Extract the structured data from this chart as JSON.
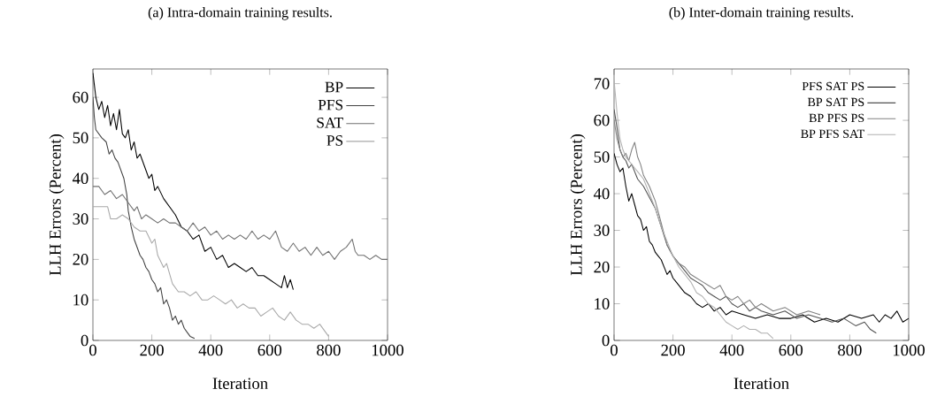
{
  "chart_data": [
    {
      "type": "line",
      "title": "(a) Intra-domain training results.",
      "xlabel": "Iteration",
      "ylabel": "LLH Errors (Percent)",
      "xlim": [
        0,
        1000
      ],
      "ylim": [
        0,
        67
      ],
      "xticks": [
        0,
        200,
        400,
        600,
        800,
        1000
      ],
      "yticks": [
        0,
        10,
        20,
        30,
        40,
        50,
        60
      ],
      "legend": "top right",
      "series": [
        {
          "name": "BP",
          "color": "#000000",
          "x": [
            0,
            10,
            20,
            30,
            40,
            50,
            60,
            70,
            80,
            90,
            100,
            110,
            120,
            130,
            140,
            150,
            160,
            180,
            190,
            200,
            210,
            220,
            240,
            260,
            280,
            300,
            320,
            340,
            360,
            380,
            400,
            420,
            440,
            460,
            480,
            500,
            520,
            540,
            560,
            580,
            600,
            620,
            640,
            650,
            660,
            670,
            680
          ],
          "values": [
            66,
            60,
            57,
            59,
            55,
            58,
            53,
            56,
            52,
            57,
            51,
            50,
            52,
            47,
            49,
            45,
            46,
            42,
            40,
            41,
            37,
            38,
            35,
            33,
            31,
            28,
            27,
            25,
            26,
            22,
            23,
            20,
            21,
            18,
            19,
            18,
            17,
            18,
            16,
            16,
            15,
            14,
            13,
            16,
            13,
            15,
            12.5
          ]
        },
        {
          "name": "PFS",
          "color": "#404040",
          "x": [
            0,
            5,
            10,
            20,
            30,
            45,
            55,
            65,
            75,
            85,
            95,
            105,
            115,
            120,
            130,
            140,
            150,
            160,
            170,
            180,
            190,
            200,
            210,
            220,
            230,
            240,
            250,
            260,
            270,
            280,
            290,
            300,
            310,
            320,
            330,
            345
          ],
          "values": [
            60,
            55,
            52,
            51,
            50,
            49,
            46,
            47,
            45,
            44,
            42,
            40,
            36,
            32,
            28,
            25,
            23,
            21,
            20,
            18,
            17,
            15,
            14,
            12,
            13,
            9,
            10,
            8,
            5,
            6,
            4,
            5,
            3,
            2,
            1,
            0.5
          ]
        },
        {
          "name": "SAT",
          "color": "#707070",
          "x": [
            0,
            20,
            40,
            60,
            80,
            100,
            120,
            140,
            150,
            165,
            180,
            200,
            220,
            240,
            260,
            280,
            300,
            320,
            340,
            360,
            380,
            400,
            420,
            440,
            460,
            480,
            500,
            520,
            540,
            560,
            580,
            600,
            620,
            640,
            660,
            680,
            700,
            720,
            740,
            760,
            780,
            800,
            820,
            840,
            860,
            880,
            890,
            900,
            920,
            940,
            960,
            980,
            1000
          ],
          "values": [
            38,
            38,
            36,
            37,
            35,
            36,
            34,
            32,
            33,
            30,
            31,
            30,
            29,
            30,
            29,
            29,
            28,
            27,
            29,
            27,
            28,
            26,
            27,
            25,
            26,
            25,
            26,
            25,
            27,
            25,
            26,
            25,
            27,
            23,
            22,
            24,
            22,
            23,
            21,
            23,
            21,
            22,
            20,
            22,
            23,
            25,
            22,
            21,
            21,
            20,
            21,
            20,
            20
          ]
        },
        {
          "name": "PS",
          "color": "#a8a8a8",
          "x": [
            0,
            50,
            60,
            80,
            100,
            120,
            140,
            160,
            180,
            200,
            210,
            220,
            240,
            250,
            270,
            290,
            310,
            330,
            350,
            370,
            390,
            410,
            430,
            450,
            470,
            490,
            510,
            530,
            550,
            570,
            590,
            610,
            630,
            650,
            670,
            690,
            710,
            730,
            750,
            770,
            790,
            800
          ],
          "values": [
            33,
            33,
            30,
            30,
            31,
            30,
            28,
            27,
            27,
            24,
            25,
            21,
            18,
            19,
            14,
            12,
            12,
            11,
            12,
            10,
            10,
            11,
            10,
            9,
            10,
            8,
            9,
            8,
            8,
            6,
            7,
            8,
            6,
            5,
            7,
            5,
            4,
            4,
            3,
            4,
            2,
            1
          ]
        }
      ]
    },
    {
      "type": "line",
      "title": "(b) Inter-domain training results.",
      "xlabel": "Iteration",
      "ylabel": "LLH Errors (Percent)",
      "xlim": [
        0,
        1000
      ],
      "ylim": [
        0,
        74
      ],
      "xticks": [
        0,
        200,
        400,
        600,
        800,
        1000
      ],
      "yticks": [
        0,
        10,
        20,
        30,
        40,
        50,
        60,
        70
      ],
      "legend": "top right",
      "series": [
        {
          "name": "PFS SAT PS",
          "color": "#000000",
          "x": [
            0,
            10,
            20,
            30,
            40,
            50,
            60,
            70,
            80,
            90,
            100,
            110,
            120,
            130,
            140,
            150,
            160,
            170,
            180,
            190,
            200,
            220,
            240,
            260,
            280,
            300,
            320,
            340,
            360,
            380,
            400,
            440,
            480,
            520,
            560,
            600,
            640,
            680,
            720,
            760,
            800,
            840,
            880,
            900,
            920,
            940,
            960,
            980,
            1000
          ],
          "values": [
            51,
            48,
            46,
            47,
            42,
            38,
            40,
            37,
            34,
            33,
            30,
            31,
            27,
            26,
            24,
            23,
            22,
            20,
            18,
            19,
            17,
            15,
            13,
            12,
            10,
            9,
            10,
            8,
            9,
            7,
            8,
            7,
            6,
            7,
            6,
            6,
            7,
            5,
            6,
            5,
            7,
            6,
            7,
            5,
            7,
            6,
            8,
            5,
            6
          ]
        },
        {
          "name": "BP SAT PS",
          "color": "#505050",
          "x": [
            0,
            10,
            20,
            30,
            40,
            50,
            60,
            70,
            80,
            90,
            100,
            120,
            140,
            160,
            180,
            200,
            220,
            240,
            260,
            280,
            300,
            320,
            340,
            360,
            380,
            400,
            420,
            440,
            460,
            480,
            500,
            540,
            580,
            620,
            660,
            700,
            740,
            780,
            820,
            850,
            870,
            890
          ],
          "values": [
            63,
            58,
            52,
            50,
            49,
            47,
            48,
            46,
            44,
            43,
            42,
            39,
            36,
            31,
            26,
            23,
            21,
            19,
            17,
            16,
            15,
            13,
            12,
            11,
            12,
            10,
            9,
            10,
            8,
            9,
            8,
            7,
            8,
            6,
            7,
            6,
            5,
            6,
            4,
            5,
            3,
            2
          ]
        },
        {
          "name": "BP PFS PS",
          "color": "#808080",
          "x": [
            0,
            10,
            20,
            30,
            40,
            50,
            60,
            70,
            80,
            90,
            100,
            120,
            140,
            160,
            180,
            200,
            220,
            240,
            260,
            280,
            300,
            320,
            340,
            360,
            380,
            400,
            420,
            440,
            460,
            480,
            500,
            540,
            580,
            620,
            660,
            700
          ],
          "values": [
            60,
            55,
            52,
            50,
            51,
            49,
            52,
            54,
            50,
            48,
            45,
            42,
            38,
            32,
            26,
            23,
            21,
            20,
            18,
            17,
            16,
            15,
            14,
            15,
            12,
            11,
            12,
            10,
            11,
            9,
            10,
            8,
            9,
            7,
            8,
            7
          ]
        },
        {
          "name": "BP PFS SAT",
          "color": "#b0b0b0",
          "x": [
            0,
            10,
            20,
            30,
            40,
            50,
            60,
            70,
            80,
            100,
            120,
            140,
            160,
            180,
            200,
            220,
            240,
            260,
            280,
            300,
            320,
            340,
            360,
            380,
            400,
            420,
            440,
            460,
            480,
            500,
            520,
            540
          ],
          "values": [
            71,
            62,
            55,
            52,
            50,
            49,
            48,
            47,
            46,
            44,
            40,
            36,
            31,
            27,
            23,
            20,
            18,
            16,
            13,
            12,
            10,
            9,
            7,
            5,
            4,
            3,
            4,
            3,
            3,
            2,
            2,
            0.5
          ]
        }
      ]
    }
  ]
}
